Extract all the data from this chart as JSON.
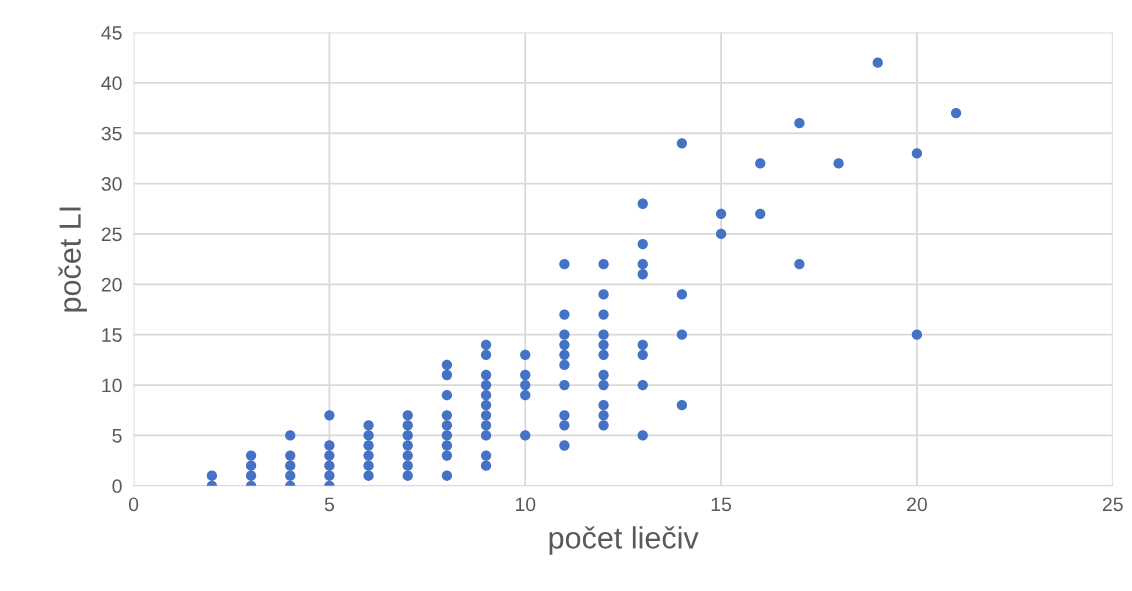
{
  "chart_data": {
    "type": "scatter",
    "xlabel": "počet liečiv",
    "ylabel": "počet LI",
    "series": [
      {
        "color": "#4472c4",
        "x": [
          2,
          2,
          3,
          3,
          3,
          3,
          4,
          4,
          4,
          4,
          4,
          5,
          5,
          5,
          5,
          5,
          5,
          6,
          6,
          6,
          6,
          6,
          6,
          7,
          7,
          7,
          7,
          7,
          7,
          7,
          8,
          8,
          8,
          8,
          8,
          8,
          8,
          8,
          8,
          9,
          9,
          9,
          9,
          9,
          9,
          9,
          9,
          9,
          9,
          9,
          10,
          10,
          10,
          10,
          10,
          11,
          11,
          11,
          11,
          11,
          11,
          11,
          11,
          11,
          11,
          12,
          12,
          12,
          12,
          12,
          12,
          12,
          12,
          12,
          12,
          12,
          13,
          13,
          13,
          13,
          13,
          13,
          13,
          13,
          14,
          14,
          14,
          14,
          15,
          15,
          16,
          16,
          17,
          17,
          18,
          19,
          20,
          20,
          21
        ],
        "values": [
          0,
          1,
          0,
          1,
          2,
          3,
          0,
          1,
          2,
          3,
          5,
          0,
          1,
          2,
          3,
          4,
          7,
          1,
          2,
          3,
          4,
          5,
          6,
          1,
          2,
          3,
          4,
          5,
          6,
          7,
          1,
          3,
          4,
          5,
          6,
          7,
          9,
          11,
          12,
          2,
          3,
          5,
          6,
          7,
          8,
          9,
          10,
          11,
          13,
          14,
          5,
          9,
          10,
          11,
          13,
          4,
          6,
          7,
          10,
          12,
          13,
          14,
          15,
          17,
          22,
          6,
          7,
          8,
          10,
          11,
          13,
          14,
          15,
          17,
          19,
          22,
          5,
          10,
          13,
          14,
          21,
          22,
          24,
          28,
          8,
          15,
          19,
          34,
          25,
          27,
          27,
          32,
          22,
          36,
          32,
          42,
          15,
          33,
          37
        ]
      }
    ],
    "marker": "circle",
    "grid": true,
    "xlim": [
      0,
      25
    ],
    "xticks": [
      0,
      5,
      10,
      15,
      20,
      25
    ],
    "ylim": [
      0,
      45
    ],
    "yticks": [
      0,
      5,
      10,
      15,
      20,
      25,
      30,
      35,
      40,
      45
    ]
  }
}
